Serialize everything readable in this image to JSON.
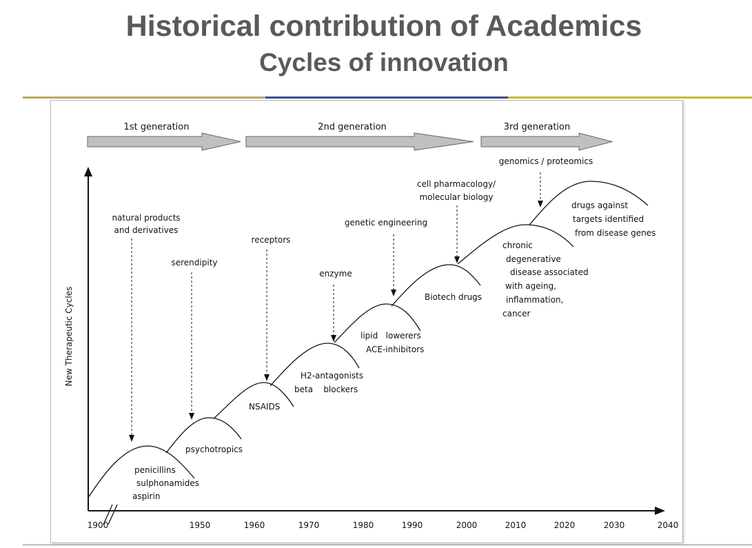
{
  "header": {
    "title": "Historical contribution of Academics",
    "subtitle": "Cycles of innovation"
  },
  "colors": {
    "title_text": "#595959",
    "rule_left": "#b8a865",
    "rule_mid": "#3e4a8c",
    "rule_right": "#c2bc2c",
    "generation_arrow_fill": "#c0c0c0"
  },
  "diagram": {
    "y_axis_label": "New Therapeutic Cycles",
    "x_ticks": [
      "1900",
      "1950",
      "1960",
      "1970",
      "1980",
      "1990",
      "2000",
      "2010",
      "2020",
      "2030",
      "2040"
    ],
    "generations": [
      "1st generation",
      "2nd generation",
      "3rd generation"
    ],
    "drivers": {
      "natural": [
        "natural products",
        "and derivatives"
      ],
      "serendipity": "serendipity",
      "receptors": "receptors",
      "enzyme": "enzyme",
      "genetic": "genetic engineering",
      "cell": [
        "cell pharmacology/",
        "molecular biology"
      ],
      "genomics": "genomics /  proteomics"
    },
    "cycles": {
      "c1": [
        "penicillins",
        "sulphonamides",
        "aspirin"
      ],
      "c2": "psychotropics",
      "c3": "NSAIDS",
      "c4": [
        "H2-antagonists",
        "beta    blockers"
      ],
      "c5": [
        "lipid   lowerers",
        "ACE-inhibitors"
      ],
      "c6": "Biotech drugs",
      "c7": [
        "chronic",
        "degenerative",
        "disease associated",
        "with ageing,",
        "inflammation,",
        "cancer"
      ],
      "c8": [
        "drugs against",
        "targets identified",
        "from disease genes"
      ]
    }
  }
}
